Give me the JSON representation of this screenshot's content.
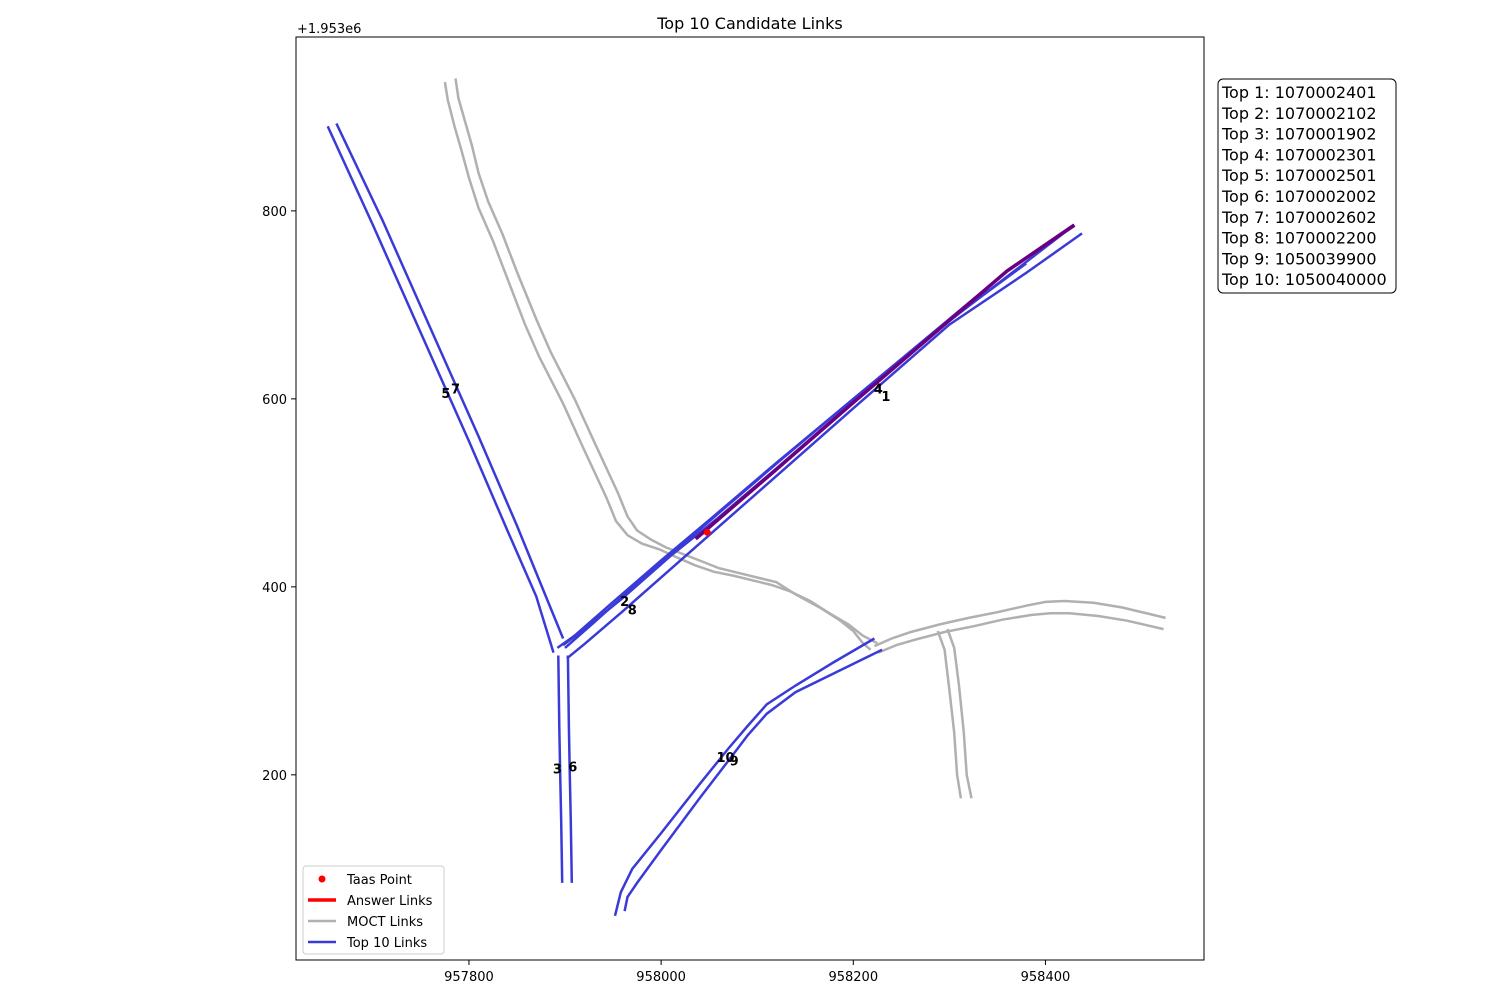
{
  "chart_data": {
    "type": "line",
    "title": "Top 10 Candidate Links",
    "xlabel": "",
    "ylabel": "",
    "y_offset_label": "+1.953e6",
    "xlim": [
      957620,
      958565
    ],
    "ylim": [
      3,
      985
    ],
    "x_ticks": [
      {
        "value": 957800,
        "label": "957800"
      },
      {
        "value": 958000,
        "label": "958000"
      },
      {
        "value": 958200,
        "label": "958200"
      },
      {
        "value": 958400,
        "label": "958400"
      }
    ],
    "y_ticks": [
      {
        "value": 200,
        "label": "200"
      },
      {
        "value": 400,
        "label": "400"
      },
      {
        "value": 600,
        "label": "600"
      },
      {
        "value": 800,
        "label": "800"
      }
    ],
    "grid": false,
    "legend": {
      "position": "lower-left",
      "entries": [
        {
          "label": "Taas Point",
          "kind": "point",
          "color": "#ff0000"
        },
        {
          "label": "Answer Links",
          "kind": "line",
          "color": "#ff0000"
        },
        {
          "label": "MOCT Links",
          "kind": "line",
          "color": "#b0b0b0"
        },
        {
          "label": "Top 10 Links",
          "kind": "line",
          "color": "#3a3ad8"
        }
      ]
    },
    "colors": {
      "taas": "#ff0000",
      "answer": "#6a0080",
      "moct": "#b0b0b0",
      "top": "#3a3ad8"
    },
    "taas_point": {
      "x": 958048,
      "y": 458
    },
    "moct_links": [
      [
        [
          957786,
          941
        ],
        [
          957789,
          920
        ],
        [
          957796,
          895
        ],
        [
          957803,
          870
        ],
        [
          957810,
          840
        ],
        [
          957820,
          810
        ],
        [
          957835,
          775
        ],
        [
          957850,
          735
        ],
        [
          957870,
          685
        ],
        [
          957885,
          650
        ],
        [
          957910,
          600
        ],
        [
          957930,
          555
        ],
        [
          957955,
          500
        ],
        [
          957965,
          475
        ],
        [
          957975,
          460
        ],
        [
          957990,
          450
        ],
        [
          958005,
          442
        ],
        [
          958020,
          436
        ],
        [
          958040,
          428
        ],
        [
          958060,
          420
        ],
        [
          958080,
          415
        ],
        [
          958100,
          410
        ],
        [
          958120,
          405
        ],
        [
          958140,
          392
        ],
        [
          958165,
          378
        ],
        [
          958185,
          365
        ],
        [
          958200,
          353
        ],
        [
          958210,
          340
        ],
        [
          958218,
          333
        ]
      ],
      [
        [
          957775,
          937
        ],
        [
          957778,
          918
        ],
        [
          957785,
          890
        ],
        [
          957792,
          865
        ],
        [
          957800,
          835
        ],
        [
          957810,
          803
        ],
        [
          957825,
          768
        ],
        [
          957840,
          728
        ],
        [
          957858,
          680
        ],
        [
          957873,
          645
        ],
        [
          957898,
          595
        ],
        [
          957918,
          550
        ],
        [
          957943,
          495
        ],
        [
          957953,
          470
        ],
        [
          957965,
          455
        ],
        [
          957980,
          446
        ],
        [
          957998,
          440
        ],
        [
          958015,
          432
        ],
        [
          958035,
          423
        ],
        [
          958055,
          416
        ],
        [
          958075,
          412
        ],
        [
          958095,
          407
        ],
        [
          958115,
          402
        ],
        [
          958135,
          395
        ],
        [
          958155,
          385
        ],
        [
          958175,
          372
        ],
        [
          958195,
          360
        ],
        [
          958210,
          348
        ],
        [
          958225,
          340
        ]
      ],
      [
        [
          958222,
          337
        ],
        [
          958240,
          345
        ],
        [
          958260,
          352
        ],
        [
          958290,
          360
        ],
        [
          958320,
          367
        ],
        [
          958350,
          373
        ],
        [
          958380,
          380
        ],
        [
          958400,
          384
        ],
        [
          958420,
          385
        ],
        [
          958450,
          383
        ],
        [
          958480,
          378
        ],
        [
          958525,
          367
        ]
      ],
      [
        [
          958226,
          330
        ],
        [
          958245,
          338
        ],
        [
          958265,
          344
        ],
        [
          958295,
          352
        ],
        [
          958325,
          358
        ],
        [
          958355,
          365
        ],
        [
          958385,
          370
        ],
        [
          958405,
          372
        ],
        [
          958425,
          372
        ],
        [
          958455,
          369
        ],
        [
          958485,
          364
        ],
        [
          958523,
          355
        ]
      ],
      [
        [
          958288,
          353
        ],
        [
          958295,
          333
        ],
        [
          958300,
          290
        ],
        [
          958305,
          245
        ],
        [
          958308,
          200
        ],
        [
          958312,
          175
        ]
      ],
      [
        [
          958298,
          355
        ],
        [
          958305,
          335
        ],
        [
          958310,
          295
        ],
        [
          958315,
          245
        ],
        [
          958318,
          200
        ],
        [
          958323,
          175
        ]
      ]
    ],
    "answer_links": [
      [
        [
          958036,
          451
        ],
        [
          958120,
          525
        ],
        [
          958200,
          596
        ],
        [
          958280,
          666
        ],
        [
          958360,
          736
        ],
        [
          958430,
          785
        ]
      ]
    ],
    "top_links": [
      {
        "rank": "1",
        "points": [
          [
            957902,
            324
          ],
          [
            957920,
            339
          ],
          [
            957960,
            374
          ],
          [
            958020,
            428
          ],
          [
            958100,
            500
          ],
          [
            958200,
            590
          ],
          [
            958300,
            679
          ],
          [
            958380,
            734
          ],
          [
            958438,
            776
          ]
        ],
        "label": {
          "x": 958234,
          "y": 603
        }
      },
      {
        "rank": "2",
        "points": [
          [
            957892,
            335
          ],
          [
            957910,
            348
          ],
          [
            957950,
            384
          ],
          [
            958000,
            428
          ],
          [
            958050,
            471
          ],
          [
            958120,
            532
          ],
          [
            958200,
            600
          ],
          [
            958300,
            683
          ],
          [
            958430,
            785
          ]
        ],
        "label": {
          "x": 957962,
          "y": 385
        }
      },
      {
        "rank": "3",
        "points": [
          [
            957893,
            327
          ],
          [
            957894,
            250
          ],
          [
            957895,
            200
          ],
          [
            957896,
            150
          ],
          [
            957897,
            85
          ]
        ],
        "label": {
          "x": 957892,
          "y": 207
        }
      },
      {
        "rank": "4",
        "points": [
          [
            957900,
            335
          ],
          [
            957930,
            362
          ],
          [
            957980,
            408
          ],
          [
            958040,
            461
          ],
          [
            958120,
            531
          ],
          [
            958200,
            600
          ],
          [
            958280,
            668
          ],
          [
            958360,
            736
          ],
          [
            958430,
            784
          ]
        ],
        "label": {
          "x": 958226,
          "y": 611
        }
      },
      {
        "rank": "5",
        "points": [
          [
            957653,
            890
          ],
          [
            957700,
            785
          ],
          [
            957750,
            670
          ],
          [
            957800,
            555
          ],
          [
            957840,
            460
          ],
          [
            957870,
            390
          ],
          [
            957888,
            330
          ]
        ],
        "label": {
          "x": 957776,
          "y": 606
        }
      },
      {
        "rank": "6",
        "points": [
          [
            957903,
            327
          ],
          [
            957904,
            250
          ],
          [
            957905,
            200
          ],
          [
            957906,
            150
          ],
          [
            957907,
            85
          ]
        ],
        "label": {
          "x": 957908,
          "y": 209
        }
      },
      {
        "rank": "7",
        "points": [
          [
            957662,
            893
          ],
          [
            957710,
            790
          ],
          [
            957760,
            675
          ],
          [
            957810,
            560
          ],
          [
            957850,
            465
          ],
          [
            957878,
            395
          ],
          [
            957898,
            345
          ]
        ],
        "label": {
          "x": 957786,
          "y": 611
        }
      },
      {
        "rank": "8",
        "points": [
          [
            957898,
            338
          ],
          [
            957920,
            355
          ],
          [
            957960,
            388
          ],
          [
            958010,
            433
          ],
          [
            958060,
            474
          ],
          [
            958120,
            526
          ],
          [
            958200,
            597
          ],
          [
            958300,
            684
          ],
          [
            958380,
            744
          ]
        ],
        "label": {
          "x": 957970,
          "y": 376
        }
      },
      {
        "rank": "9",
        "points": [
          [
            958230,
            333
          ],
          [
            958180,
            308
          ],
          [
            958140,
            288
          ],
          [
            958110,
            265
          ],
          [
            958090,
            242
          ],
          [
            958070,
            215
          ],
          [
            958040,
            175
          ],
          [
            958000,
            120
          ],
          [
            957975,
            85
          ],
          [
            957965,
            70
          ],
          [
            957962,
            55
          ]
        ],
        "label": {
          "x": 958076,
          "y": 215
        }
      },
      {
        "rank": "10",
        "points": [
          [
            958222,
            345
          ],
          [
            958180,
            320
          ],
          [
            958140,
            295
          ],
          [
            958110,
            275
          ],
          [
            958090,
            252
          ],
          [
            958070,
            228
          ],
          [
            958040,
            190
          ],
          [
            958000,
            138
          ],
          [
            957970,
            100
          ],
          [
            957958,
            75
          ],
          [
            957952,
            50
          ]
        ],
        "label": {
          "x": 958067,
          "y": 219
        }
      }
    ]
  },
  "ranking_box": {
    "items": [
      "Top 1: 1070002401",
      "Top 2: 1070002102",
      "Top 3: 1070001902",
      "Top 4: 1070002301",
      "Top 5: 1070002501",
      "Top 6: 1070002002",
      "Top 7: 1070002602",
      "Top 8: 1070002200",
      "Top 9: 1050039900",
      "Top 10: 1050040000"
    ]
  }
}
